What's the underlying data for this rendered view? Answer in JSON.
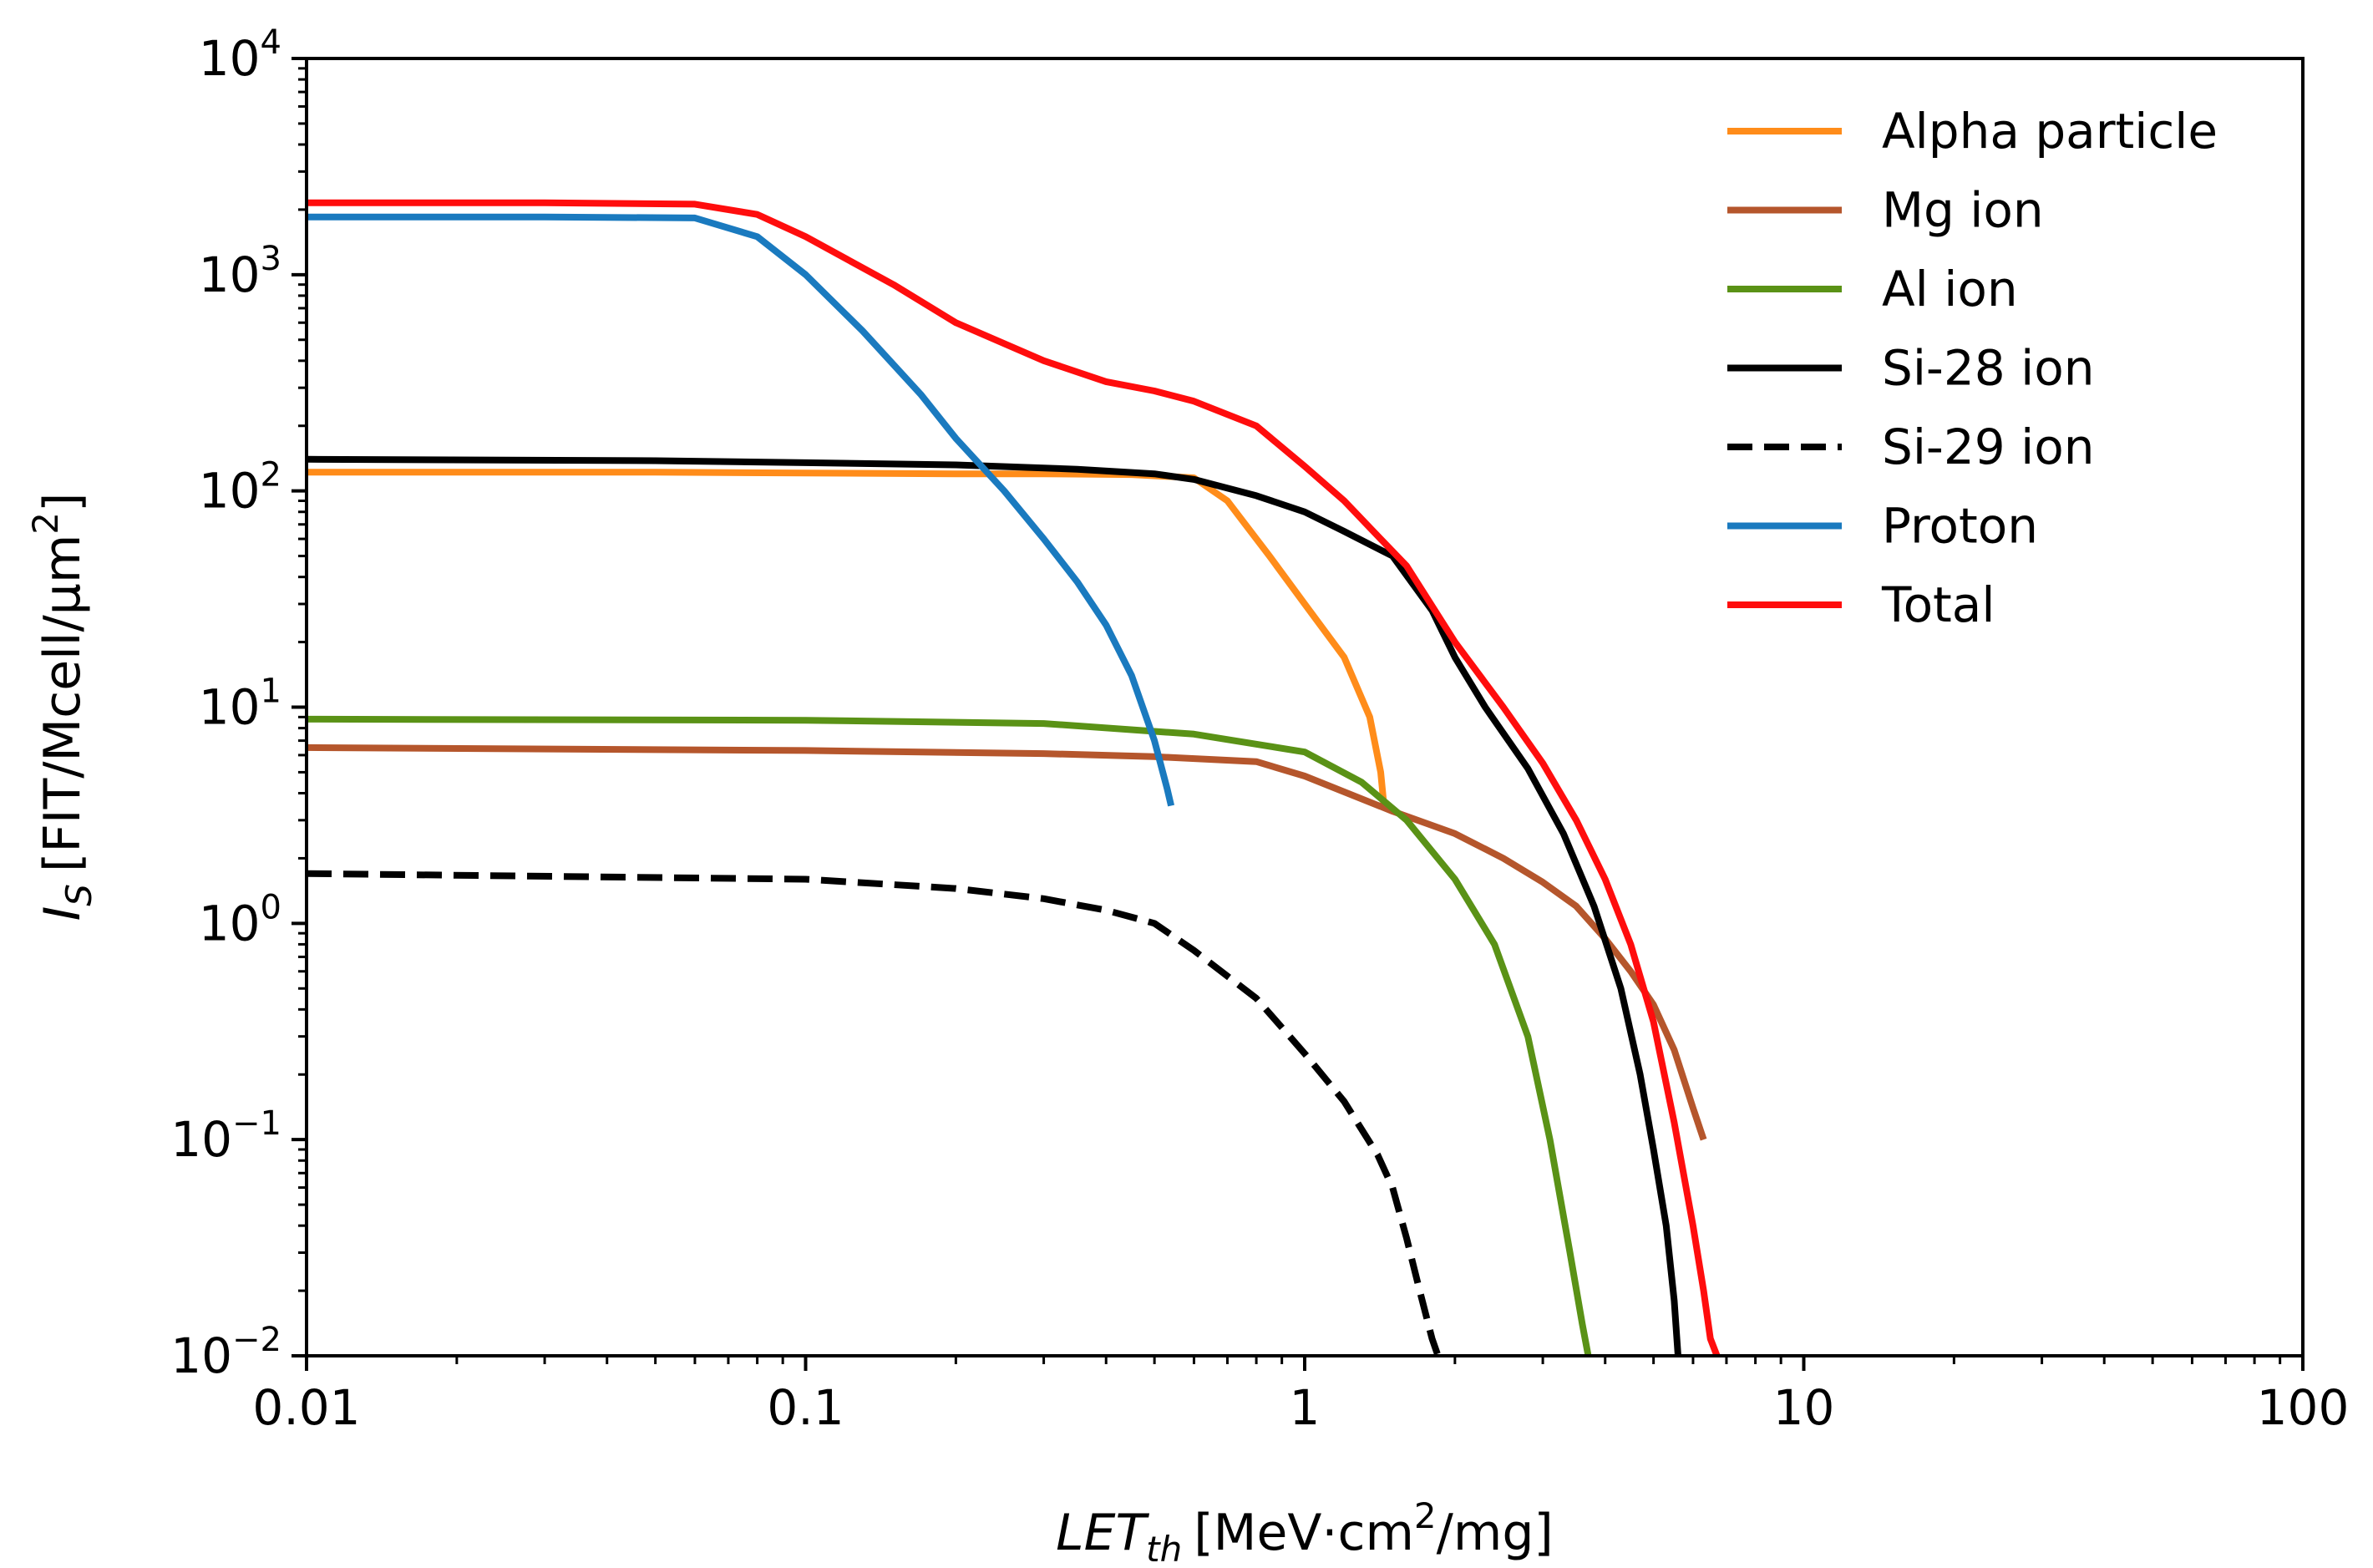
{
  "chart_data": {
    "type": "line",
    "title": "",
    "xlabel": {
      "main": "LET",
      "sub": "th",
      "units_pre": "[MeV·cm",
      "units_sup": "2",
      "units_post": "/mg]"
    },
    "ylabel": {
      "main": "I",
      "sub": "S",
      "units_pre": "[FIT/Mcell/μm",
      "units_sup": "2",
      "units_post": "]"
    },
    "xscale": "log",
    "yscale": "log",
    "xlim": [
      0.01,
      100
    ],
    "ylim": [
      0.01,
      10000
    ],
    "x_ticks": [
      {
        "value": 0.01,
        "label": "0.01"
      },
      {
        "value": 0.1,
        "label": "0.1"
      },
      {
        "value": 1,
        "label": "1"
      },
      {
        "value": 10,
        "label": "10"
      },
      {
        "value": 100,
        "label": "100"
      }
    ],
    "y_ticks": [
      {
        "value": 0.01,
        "base": "10",
        "exp": "−2"
      },
      {
        "value": 0.1,
        "base": "10",
        "exp": "−1"
      },
      {
        "value": 1,
        "base": "10",
        "exp": "0"
      },
      {
        "value": 10,
        "base": "10",
        "exp": "1"
      },
      {
        "value": 100,
        "base": "10",
        "exp": "2"
      },
      {
        "value": 1000,
        "base": "10",
        "exp": "3"
      },
      {
        "value": 10000,
        "base": "10",
        "exp": "4"
      }
    ],
    "legend_position": "top-right",
    "series": [
      {
        "name": "Alpha particle",
        "color": "#ff8c1a",
        "dash": "solid",
        "x": [
          0.01,
          0.05,
          0.1,
          0.2,
          0.3,
          0.45,
          0.6,
          0.7,
          0.85,
          1.0,
          1.2,
          1.35,
          1.42,
          1.44,
          1.45
        ],
        "y": [
          122,
          122,
          121,
          120,
          120,
          119,
          115,
          90,
          50,
          30,
          17,
          9,
          5,
          3.6,
          3.4
        ]
      },
      {
        "name": "Mg ion",
        "color": "#b5562c",
        "dash": "solid",
        "x": [
          0.01,
          0.1,
          0.3,
          0.5,
          0.8,
          1.0,
          1.5,
          2.0,
          2.5,
          3.0,
          3.5,
          4.0,
          4.5,
          5.0,
          5.5,
          6.0,
          6.3
        ],
        "y": [
          6.5,
          6.3,
          6.1,
          5.9,
          5.6,
          4.8,
          3.3,
          2.6,
          2.0,
          1.55,
          1.2,
          0.85,
          0.6,
          0.42,
          0.26,
          0.14,
          0.1
        ]
      },
      {
        "name": "Al ion",
        "color": "#5a9216",
        "dash": "solid",
        "x": [
          0.01,
          0.1,
          0.3,
          0.6,
          1.0,
          1.3,
          1.6,
          2.0,
          2.4,
          2.8,
          3.1,
          3.4,
          3.6,
          3.7
        ],
        "y": [
          8.8,
          8.7,
          8.4,
          7.5,
          6.2,
          4.5,
          3.0,
          1.6,
          0.8,
          0.3,
          0.1,
          0.03,
          0.014,
          0.01
        ]
      },
      {
        "name": "Si-28 ion",
        "color": "#000000",
        "dash": "solid",
        "x": [
          0.01,
          0.05,
          0.1,
          0.2,
          0.35,
          0.5,
          0.6,
          0.8,
          1.0,
          1.2,
          1.5,
          1.8,
          2.0,
          2.3,
          2.8,
          3.3,
          3.8,
          4.3,
          4.7,
          5.0,
          5.3,
          5.5,
          5.6
        ],
        "y": [
          140,
          138,
          135,
          132,
          126,
          120,
          113,
          95,
          80,
          65,
          50,
          28,
          17,
          10,
          5.2,
          2.6,
          1.2,
          0.5,
          0.2,
          0.09,
          0.04,
          0.018,
          0.01
        ]
      },
      {
        "name": "Si-29 ion",
        "color": "#000000",
        "dash": "dashed",
        "x": [
          0.01,
          0.1,
          0.2,
          0.3,
          0.4,
          0.5,
          0.6,
          0.8,
          1.0,
          1.2,
          1.4,
          1.5,
          1.6,
          1.7,
          1.8,
          1.85
        ],
        "y": [
          1.7,
          1.6,
          1.45,
          1.3,
          1.15,
          1.0,
          0.75,
          0.45,
          0.25,
          0.15,
          0.085,
          0.06,
          0.035,
          0.02,
          0.012,
          0.01
        ]
      },
      {
        "name": "Proton",
        "color": "#1a7abf",
        "dash": "solid",
        "x": [
          0.01,
          0.03,
          0.06,
          0.08,
          0.1,
          0.13,
          0.17,
          0.2,
          0.25,
          0.3,
          0.35,
          0.4,
          0.45,
          0.5,
          0.53,
          0.54
        ],
        "y": [
          1850,
          1850,
          1830,
          1500,
          1000,
          550,
          280,
          175,
          100,
          60,
          38,
          24,
          14,
          7,
          4.2,
          3.5
        ]
      },
      {
        "name": "Total",
        "color": "#ff0d0d",
        "dash": "solid",
        "x": [
          0.01,
          0.03,
          0.06,
          0.08,
          0.1,
          0.15,
          0.2,
          0.3,
          0.4,
          0.5,
          0.6,
          0.8,
          1.0,
          1.2,
          1.4,
          1.6,
          2.0,
          2.5,
          3.0,
          3.5,
          4.0,
          4.5,
          5.0,
          5.5,
          6.0,
          6.3,
          6.5,
          6.7
        ],
        "y": [
          2150,
          2150,
          2120,
          1900,
          1500,
          900,
          600,
          400,
          320,
          290,
          260,
          200,
          130,
          90,
          62,
          45,
          20,
          10,
          5.5,
          3.0,
          1.6,
          0.8,
          0.35,
          0.12,
          0.04,
          0.02,
          0.012,
          0.01
        ]
      }
    ]
  }
}
